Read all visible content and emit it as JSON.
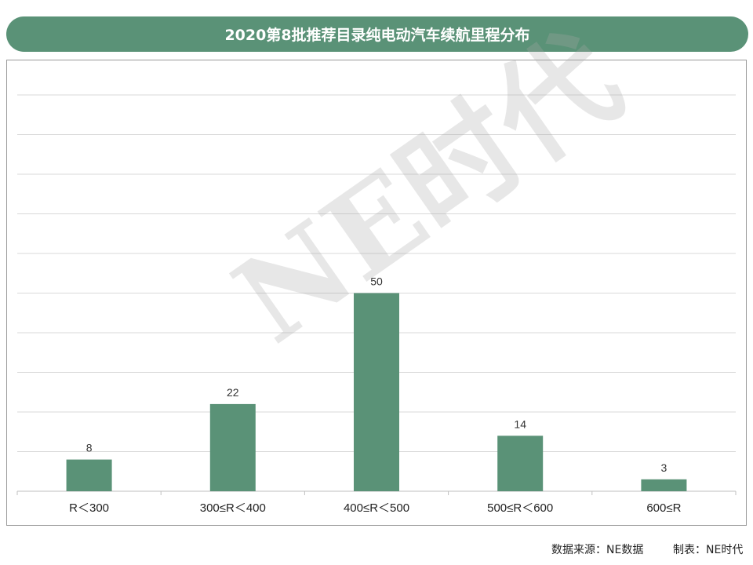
{
  "title": "2020第8批推荐目录纯电动汽车续航里程分布",
  "watermark": "NE时代",
  "footer": {
    "source": "数据来源：NE数据",
    "maker": "制表：NE时代"
  },
  "colors": {
    "bar": "#5a9277",
    "title_bg": "#5a9277",
    "grid": "#d9d9d9",
    "label": "#333333"
  },
  "chart_data": {
    "type": "bar",
    "categories": [
      "R＜300",
      "300≤R＜400",
      "400≤R＜500",
      "500≤R＜600",
      "600≤R"
    ],
    "values": [
      8,
      22,
      50,
      14,
      3
    ],
    "title": "2020第8批推荐目录纯电动汽车续航里程分布",
    "xlabel": "",
    "ylabel": "",
    "ylim": [
      0,
      100
    ],
    "grid": true,
    "data_labels": true
  }
}
